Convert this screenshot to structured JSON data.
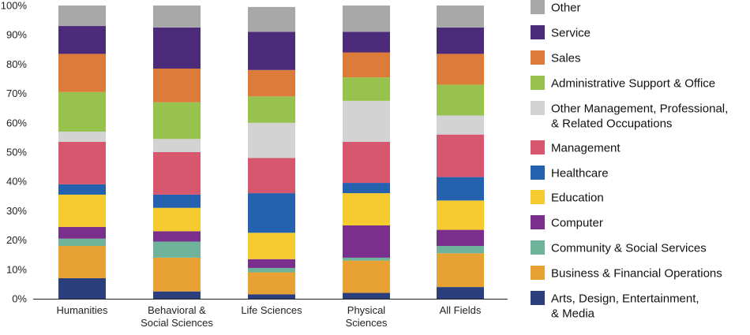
{
  "chart_data": {
    "type": "bar",
    "stacked": true,
    "percent": true,
    "ylim": [
      0,
      100
    ],
    "ytick_step": 10,
    "grid": false,
    "legend_placement": "right",
    "categories": [
      [
        "Humanities"
      ],
      [
        "Behavioral &",
        "Social Sciences"
      ],
      [
        "Life Sciences"
      ],
      [
        "Physical",
        "Sciences"
      ],
      [
        "All Fields"
      ]
    ],
    "series": [
      {
        "name": [
          "Arts, Design, Entertainment,",
          "& Media"
        ],
        "color": "#2b3f7d",
        "values": [
          7,
          2.5,
          1.5,
          2,
          4
        ]
      },
      {
        "name": [
          "Business & Financial Operations"
        ],
        "color": "#e8a133",
        "values": [
          11,
          11.5,
          7.5,
          11,
          11.5
        ]
      },
      {
        "name": [
          "Community & Social Services"
        ],
        "color": "#6fb39a",
        "values": [
          2.5,
          5.5,
          1.5,
          1,
          2.5
        ]
      },
      {
        "name": [
          "Computer"
        ],
        "color": "#7b2f8c",
        "values": [
          4,
          3.5,
          3,
          11,
          5.5
        ]
      },
      {
        "name": [
          "Education"
        ],
        "color": "#f5cb2f",
        "values": [
          11,
          8,
          9,
          11,
          10
        ]
      },
      {
        "name": [
          "Healthcare"
        ],
        "color": "#2462b0",
        "values": [
          3.5,
          4.5,
          13.5,
          3.5,
          8
        ]
      },
      {
        "name": [
          "Management"
        ],
        "color": "#d7576e",
        "values": [
          14.5,
          14.5,
          12,
          14,
          14.5
        ]
      },
      {
        "name": [
          "Other Management, Professional,",
          "& Related Occupations"
        ],
        "color": "#d3d3d3",
        "values": [
          3.5,
          4.5,
          12,
          14,
          6.5
        ]
      },
      {
        "name": [
          "Administrative Support & Office"
        ],
        "color": "#97c24e",
        "values": [
          13.5,
          12.5,
          9,
          8,
          10.5
        ]
      },
      {
        "name": [
          "Sales"
        ],
        "color": "#dd7b3a",
        "values": [
          13,
          11.5,
          9,
          8.5,
          10.5
        ]
      },
      {
        "name": [
          "Service"
        ],
        "color": "#4c2b7a",
        "values": [
          9.5,
          14,
          13,
          7,
          9
        ]
      },
      {
        "name": [
          "Other"
        ],
        "color": "#a8a8a8",
        "values": [
          7,
          7.5,
          8.5,
          9,
          7.5
        ]
      }
    ]
  }
}
